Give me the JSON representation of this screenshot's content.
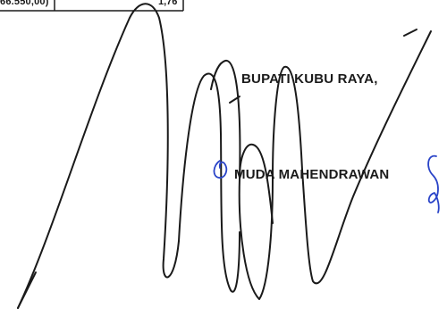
{
  "table_row": {
    "value_a": "66.550,00)",
    "value_b": "1,76"
  },
  "signature_block": {
    "title": "BUPATI KUBU RAYA,",
    "name": "MUDA MAHENDRAWAN"
  },
  "colors": {
    "ink_black": "#1a1a1a",
    "ink_blue": "#2a44c8"
  }
}
